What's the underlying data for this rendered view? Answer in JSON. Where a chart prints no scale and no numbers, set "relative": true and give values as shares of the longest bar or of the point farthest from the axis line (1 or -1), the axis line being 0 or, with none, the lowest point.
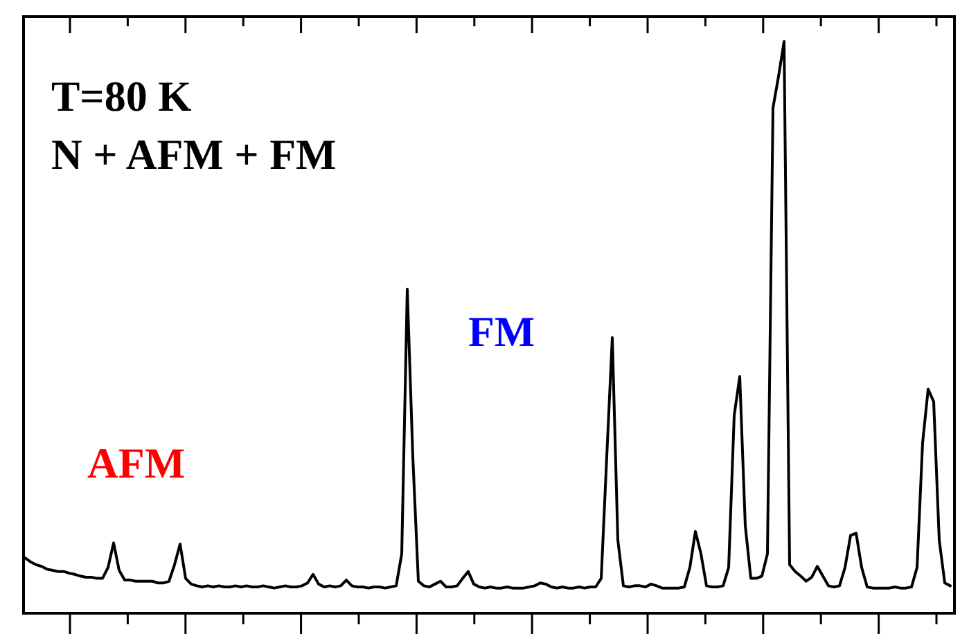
{
  "chart_data": {
    "type": "line",
    "relative": true,
    "color": "#000000",
    "annotations": [
      "T=80 K",
      "N + AFM + FM",
      "FM",
      "AFM"
    ],
    "categories": [
      null,
      null,
      null,
      null,
      null,
      null,
      null,
      null,
      null,
      null,
      null,
      null,
      null,
      null,
      null,
      null,
      null,
      null,
      null,
      null,
      null,
      null,
      null,
      null,
      null,
      null,
      null,
      null,
      null,
      null,
      null,
      null,
      null,
      null,
      null,
      null,
      null,
      null,
      null,
      null,
      null,
      null,
      null,
      null,
      null,
      null,
      null,
      null,
      null,
      null,
      null,
      null,
      null,
      null,
      null,
      null,
      null,
      null,
      null,
      null,
      null,
      null,
      null,
      null,
      null,
      null,
      null,
      null,
      null,
      null,
      null,
      null,
      null,
      null,
      null,
      null,
      null,
      null,
      null,
      null,
      null,
      null,
      null,
      null,
      null,
      null,
      null,
      null,
      null,
      null,
      null,
      null,
      null,
      null,
      null,
      null,
      null,
      null,
      null,
      null,
      null,
      null,
      null,
      null,
      null,
      null,
      null,
      null,
      null,
      null,
      null,
      null,
      null,
      null,
      null,
      null,
      null,
      null,
      null,
      null,
      null,
      null,
      null,
      null,
      null,
      null,
      null,
      null,
      null,
      null,
      null,
      null,
      null,
      null,
      null,
      null,
      null,
      null,
      null,
      null,
      null,
      null,
      null,
      null,
      null,
      null,
      null,
      null,
      null,
      null,
      null,
      null,
      null,
      null,
      null,
      null,
      null,
      null,
      null,
      null,
      null,
      null,
      null,
      null,
      null,
      null,
      null,
      null
    ],
    "values": [
      0.097,
      0.09,
      0.085,
      0.082,
      0.077,
      0.075,
      0.073,
      0.073,
      0.07,
      0.068,
      0.065,
      0.063,
      0.063,
      0.061,
      0.061,
      0.08,
      0.123,
      0.075,
      0.058,
      0.058,
      0.056,
      0.056,
      0.056,
      0.056,
      0.053,
      0.053,
      0.056,
      0.085,
      0.121,
      0.061,
      0.051,
      0.048,
      0.046,
      0.048,
      0.046,
      0.048,
      0.046,
      0.046,
      0.048,
      0.046,
      0.048,
      0.046,
      0.046,
      0.048,
      0.046,
      0.044,
      0.046,
      0.048,
      0.046,
      0.046,
      0.048,
      0.053,
      0.068,
      0.051,
      0.046,
      0.048,
      0.046,
      0.048,
      0.058,
      0.048,
      0.046,
      0.046,
      0.044,
      0.046,
      0.046,
      0.044,
      0.046,
      0.048,
      0.104,
      0.567,
      0.274,
      0.056,
      0.048,
      0.046,
      0.051,
      0.056,
      0.046,
      0.046,
      0.048,
      0.061,
      0.073,
      0.051,
      0.046,
      0.044,
      0.046,
      0.044,
      0.044,
      0.046,
      0.044,
      0.044,
      0.044,
      0.046,
      0.048,
      0.053,
      0.051,
      0.046,
      0.044,
      0.046,
      0.044,
      0.044,
      0.046,
      0.044,
      0.046,
      0.046,
      0.061,
      0.274,
      0.482,
      0.128,
      0.048,
      0.046,
      0.048,
      0.048,
      0.046,
      0.051,
      0.048,
      0.044,
      0.044,
      0.044,
      0.044,
      0.046,
      0.08,
      0.143,
      0.104,
      0.048,
      0.046,
      0.046,
      0.048,
      0.08,
      0.346,
      0.414,
      0.153,
      0.061,
      0.061,
      0.065,
      0.104,
      0.884,
      0.939,
      1,
      0.085,
      0.073,
      0.065,
      0.056,
      0.063,
      0.082,
      0.065,
      0.048,
      0.046,
      0.048,
      0.08,
      0.136,
      0.14,
      0.08,
      0.046,
      0.044,
      0.044,
      0.044,
      0.044,
      0.046,
      0.044,
      0.044,
      0.046,
      0.08,
      0.298,
      0.392,
      0.37,
      0.128,
      0.053,
      0.048
    ]
  }
}
